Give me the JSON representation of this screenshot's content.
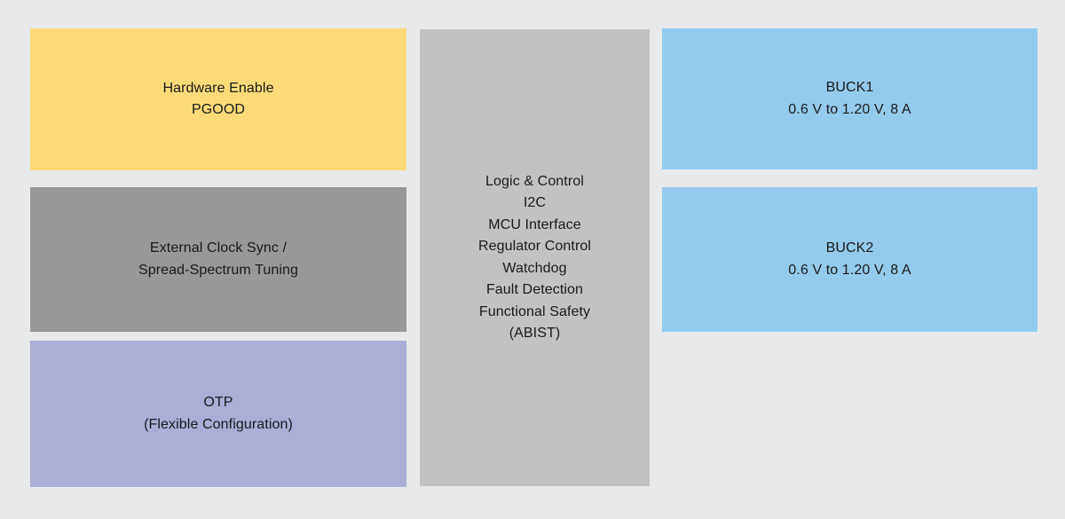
{
  "diagram": {
    "background_color": "#e8e9ea",
    "text_color": "#1a1a1a",
    "blocks": {
      "hardware_enable": {
        "color": "#fcda79",
        "lines": [
          "Hardware Enable",
          "PGOOD"
        ]
      },
      "clock_sync": {
        "color": "#97989a",
        "lines": [
          "External Clock Sync /",
          "Spread-Spectrum Tuning"
        ]
      },
      "otp": {
        "color": "#abaed5",
        "lines": [
          "OTP",
          "(Flexible Configuration)"
        ]
      },
      "logic": {
        "color": "#c1c2c4",
        "lines": [
          "Logic & Control",
          "I2C",
          "MCU Interface",
          "Regulator Control",
          "Watchdog",
          "Fault Detection",
          "Functional Safety",
          "(ABIST)"
        ]
      },
      "buck1": {
        "color": "#92cbee",
        "lines": [
          "BUCK1",
          "0.6 V to 1.20 V, 8 A"
        ]
      },
      "buck2": {
        "color": "#92cbee",
        "lines": [
          "BUCK2",
          "0.6 V to 1.20 V, 8 A"
        ]
      }
    }
  }
}
